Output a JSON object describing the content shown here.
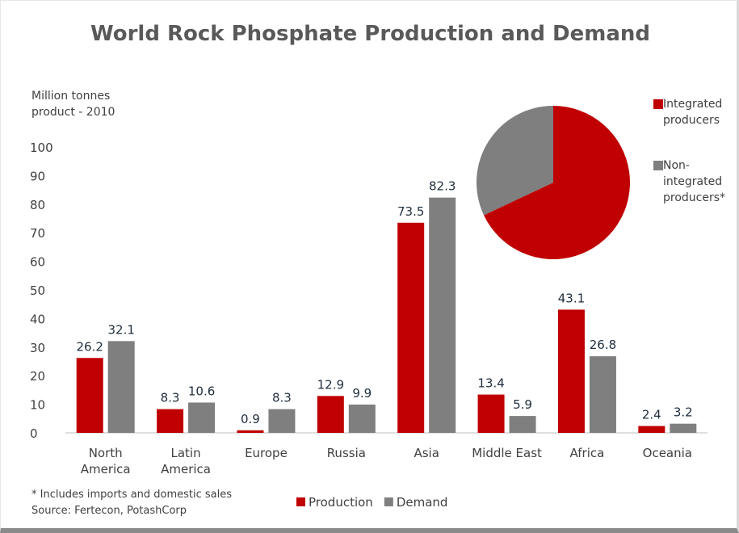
{
  "chart_data": [
    {
      "type": "bar",
      "title": "World Rock Phosphate Production and Demand",
      "y_label": "Million tonnes\nproduct - 2010",
      "categories": [
        "North\nAmerica",
        "Latin\nAmerica",
        "Europe",
        "Russia",
        "Asia",
        "Middle East",
        "Africa",
        "Oceania"
      ],
      "series": [
        {
          "name": "Production",
          "color": "#c00000",
          "values": [
            26.2,
            8.3,
            0.9,
            12.9,
            73.5,
            13.4,
            43.1,
            2.4
          ]
        },
        {
          "name": "Demand",
          "color": "#7f7f7f",
          "values": [
            32.1,
            10.6,
            8.3,
            9.9,
            82.3,
            5.9,
            26.8,
            3.2
          ]
        }
      ],
      "ylim": [
        0,
        100
      ],
      "yticks": [
        0,
        10,
        20,
        30,
        40,
        50,
        60,
        70,
        80,
        90,
        100
      ],
      "legend": "bottom",
      "notes": [
        "* Includes imports and domestic sales",
        "Source: Fertecon, PotashCorp"
      ]
    },
    {
      "type": "pie",
      "labels": [
        "Integrated\nproducers",
        "Non-\nintegrated\nproducers*"
      ],
      "values": [
        68,
        32
      ],
      "colors": [
        "#c00000",
        "#7f7f7f"
      ],
      "legend": "right"
    }
  ]
}
